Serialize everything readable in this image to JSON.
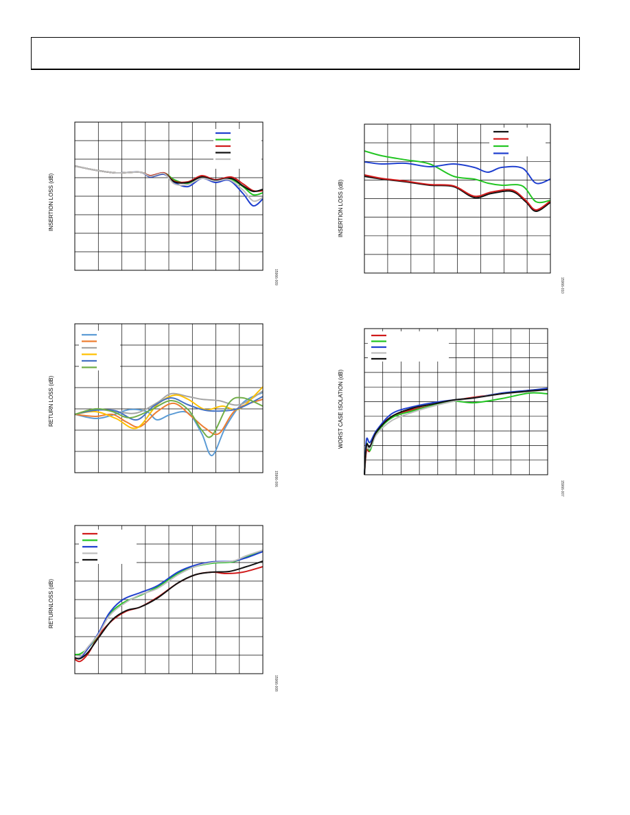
{
  "charts": [
    {
      "ylabel": "INSERTION LOSS (dB)",
      "figid": "15966-009",
      "series": [
        {
          "color": "#1f3fcf",
          "name": ""
        },
        {
          "color": "#22c522",
          "name": ""
        },
        {
          "color": "#d01a1a",
          "name": ""
        },
        {
          "color": "#111111",
          "name": ""
        },
        {
          "color": "#bdbdbd",
          "name": ""
        }
      ]
    },
    {
      "ylabel": "INSERTION LOSS (dB)",
      "figid": "15966-010",
      "series": [
        {
          "color": "#111111",
          "name": ""
        },
        {
          "color": "#d01a1a",
          "name": ""
        },
        {
          "color": "#22c522",
          "name": ""
        },
        {
          "color": "#1f3fcf",
          "name": ""
        }
      ]
    },
    {
      "ylabel": "RETURN LOSS (dB)",
      "figid": "15966-006",
      "series": [
        {
          "color": "#5b9bd5",
          "name": ""
        },
        {
          "color": "#ed7d31",
          "name": ""
        },
        {
          "color": "#a5a5a5",
          "name": ""
        },
        {
          "color": "#ffc000",
          "name": ""
        },
        {
          "color": "#4472c4",
          "name": ""
        },
        {
          "color": "#70ad47",
          "name": ""
        }
      ]
    },
    {
      "ylabel": "WORST CASE ISOLATION (dB)",
      "figid": "15966-007",
      "series": [
        {
          "color": "#d01a1a",
          "name": ""
        },
        {
          "color": "#22c522",
          "name": ""
        },
        {
          "color": "#1f3fcf",
          "name": ""
        },
        {
          "color": "#bdbdbd",
          "name": ""
        },
        {
          "color": "#111111",
          "name": ""
        }
      ]
    },
    {
      "ylabel": "RETURNLOSS (dB)",
      "figid": "15966-008",
      "series": [
        {
          "color": "#d01a1a",
          "name": ""
        },
        {
          "color": "#22c522",
          "name": ""
        },
        {
          "color": "#1f3fcf",
          "name": ""
        },
        {
          "color": "#bdbdbd",
          "name": ""
        },
        {
          "color": "#111111",
          "name": ""
        }
      ]
    }
  ]
}
